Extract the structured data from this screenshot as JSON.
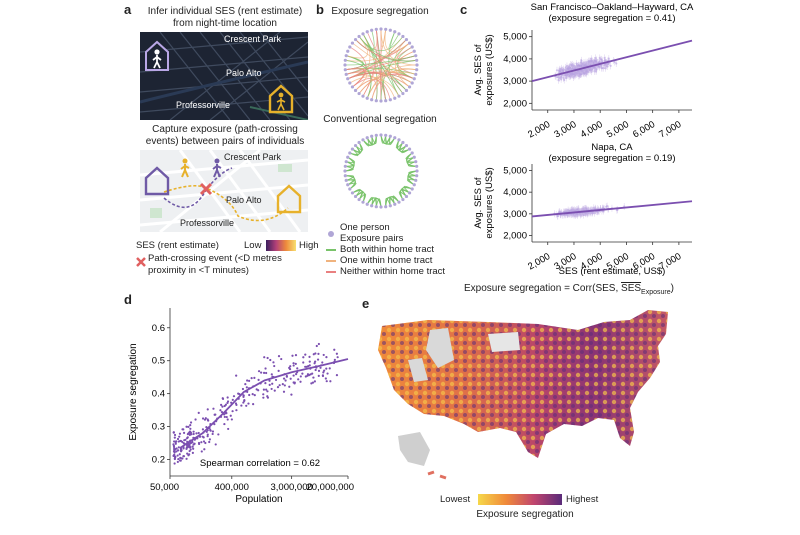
{
  "panel_a": {
    "letter": "a",
    "title_line1": "Infer individual SES (rent estimate)",
    "title_line2": "from night-time location",
    "map1_labels": [
      "Crescent Park",
      "Palo Alto",
      "Professorville"
    ],
    "subtitle_line1": "Capture exposure (path-crossing",
    "subtitle_line2": "events) between pairs of individuals",
    "map2_labels": [
      "Crescent Park",
      "Palo Alto",
      "Professorville"
    ],
    "ses_legend_label": "SES (rent estimate)",
    "ses_low": "Low",
    "ses_high": "High",
    "event_line1": "Path-crossing event (<D metres",
    "event_line2": "proximity in <T minutes)",
    "colors": {
      "night": "#1d2433",
      "home": "#e7b12b",
      "person": "#6f5aa6",
      "event": "#e06060"
    }
  },
  "panel_b": {
    "letter": "b",
    "title_top": "Exposure segregation",
    "title_bottom": "Conventional segregation",
    "legend_person": "One person",
    "legend_pairs_title": "Exposure pairs",
    "legend_items": [
      {
        "label": "Both within home tract",
        "color": "#79c36a"
      },
      {
        "label": "One within home tract",
        "color": "#f0b37e"
      },
      {
        "label": "Neither within home tract",
        "color": "#e98080"
      }
    ]
  },
  "panel_c": {
    "letter": "c",
    "formula_prefix": "Exposure segregation = Corr(SES, ",
    "formula_overlined": "SES",
    "formula_sub": "Exposure",
    "formula_suffix": ")"
  },
  "panel_d": {
    "letter": "d"
  },
  "panel_e": {
    "letter": "e",
    "legend_low": "Lowest",
    "legend_high": "Highest",
    "legend_title": "Exposure segregation"
  },
  "chart_data": [
    {
      "id": "c-top",
      "type": "scatter",
      "title": "San Francisco–Oakland–Hayward, CA",
      "subtitle": "(exposure segregation = 0.41)",
      "xlabel": "",
      "ylabel": "Avg. SES of exposures (US$)",
      "x_ticks": [
        2000,
        3000,
        4000,
        5000,
        6000,
        7000
      ],
      "x_tick_labels": [
        "2,000",
        "3,000",
        "4,000",
        "5,000",
        "6,000",
        "7,000"
      ],
      "y_ticks": [
        2000,
        3000,
        4000,
        5000
      ],
      "y_tick_labels": [
        "2,000",
        "3,000",
        "4,000",
        "5,000"
      ],
      "xlim": [
        1400,
        7500
      ],
      "ylim": [
        1700,
        5300
      ],
      "fit_line": [
        [
          1400,
          3000
        ],
        [
          7500,
          4820
        ]
      ],
      "color": "#7b4fb0"
    },
    {
      "id": "c-bottom",
      "type": "scatter",
      "title": "Napa, CA",
      "subtitle": "(exposure segregation = 0.19)",
      "xlabel": "SES (rent estimate, US$)",
      "ylabel": "Avg. SES of exposures (US$)",
      "x_ticks": [
        2000,
        3000,
        4000,
        5000,
        6000,
        7000
      ],
      "x_tick_labels": [
        "2,000",
        "3,000",
        "4,000",
        "5,000",
        "6,000",
        "7,000"
      ],
      "y_ticks": [
        2000,
        3000,
        4000,
        5000
      ],
      "y_tick_labels": [
        "2,000",
        "3,000",
        "4,000",
        "5,000"
      ],
      "xlim": [
        1400,
        7500
      ],
      "ylim": [
        1700,
        5300
      ],
      "fit_line": [
        [
          1400,
          2880
        ],
        [
          7500,
          3580
        ]
      ],
      "color": "#7b4fb0"
    },
    {
      "id": "d",
      "type": "scatter",
      "title": "",
      "xlabel": "Population",
      "ylabel": "Exposure segregation",
      "x_scale": "log",
      "x_ticks": [
        50000,
        400000,
        3000000,
        20000000
      ],
      "x_tick_labels": [
        "50,000",
        "400,000",
        "3,000,000",
        "20,000,000"
      ],
      "y_ticks": [
        0.2,
        0.3,
        0.4,
        0.5,
        0.6
      ],
      "y_tick_labels": [
        "0.2",
        "0.3",
        "0.4",
        "0.5",
        "0.6"
      ],
      "xlim": [
        50000,
        20000000
      ],
      "ylim": [
        0.15,
        0.66
      ],
      "trend_line": [
        [
          70000,
          0.235
        ],
        [
          150000,
          0.28
        ],
        [
          300000,
          0.34
        ],
        [
          600000,
          0.405
        ],
        [
          1200000,
          0.44
        ],
        [
          3000000,
          0.465
        ],
        [
          8000000,
          0.485
        ],
        [
          20000000,
          0.505
        ]
      ],
      "annotation": "Spearman correlation = 0.62",
      "color": "#7b4fb0"
    }
  ]
}
